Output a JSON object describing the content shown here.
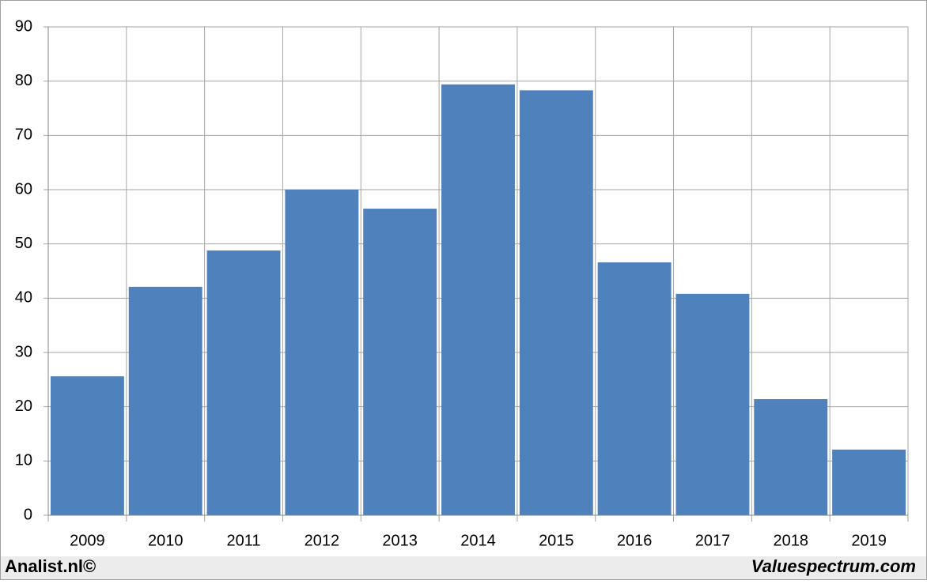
{
  "chart_data": {
    "type": "bar",
    "categories": [
      "2009",
      "2010",
      "2011",
      "2012",
      "2013",
      "2014",
      "2015",
      "2016",
      "2017",
      "2018",
      "2019"
    ],
    "values": [
      25.6,
      42.1,
      48.8,
      60.0,
      56.5,
      79.4,
      78.3,
      46.6,
      40.8,
      21.4,
      12.1
    ],
    "color": "#4f81bd",
    "ylim": [
      0,
      90
    ],
    "yticks": [
      0,
      10,
      20,
      30,
      40,
      50,
      60,
      70,
      80,
      90
    ],
    "grid": true,
    "source_left": "Analist.nl©",
    "source_right": "Valuespectrum.com"
  }
}
